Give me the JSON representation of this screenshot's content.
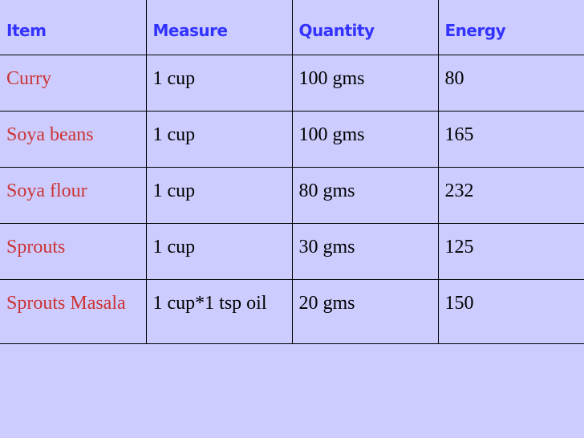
{
  "table": {
    "headers": [
      "Item",
      "Measure",
      "Quantity",
      "Energy"
    ],
    "rows": [
      [
        "Curry",
        "1 cup",
        "100 gms",
        "80"
      ],
      [
        "Soya beans",
        "1 cup",
        "100 gms",
        "165"
      ],
      [
        "Soya flour",
        "1 cup",
        "80 gms",
        "232"
      ],
      [
        "Sprouts",
        "1 cup",
        "30 gms",
        "125"
      ],
      [
        "Sprouts Masala",
        "1 cup*1 tsp oil",
        "20 gms",
        "150"
      ]
    ]
  },
  "colors": {
    "background": "#ccccff",
    "header_text": "#3333ff",
    "item_text": "#cc3333",
    "cell_text": "#000000"
  }
}
